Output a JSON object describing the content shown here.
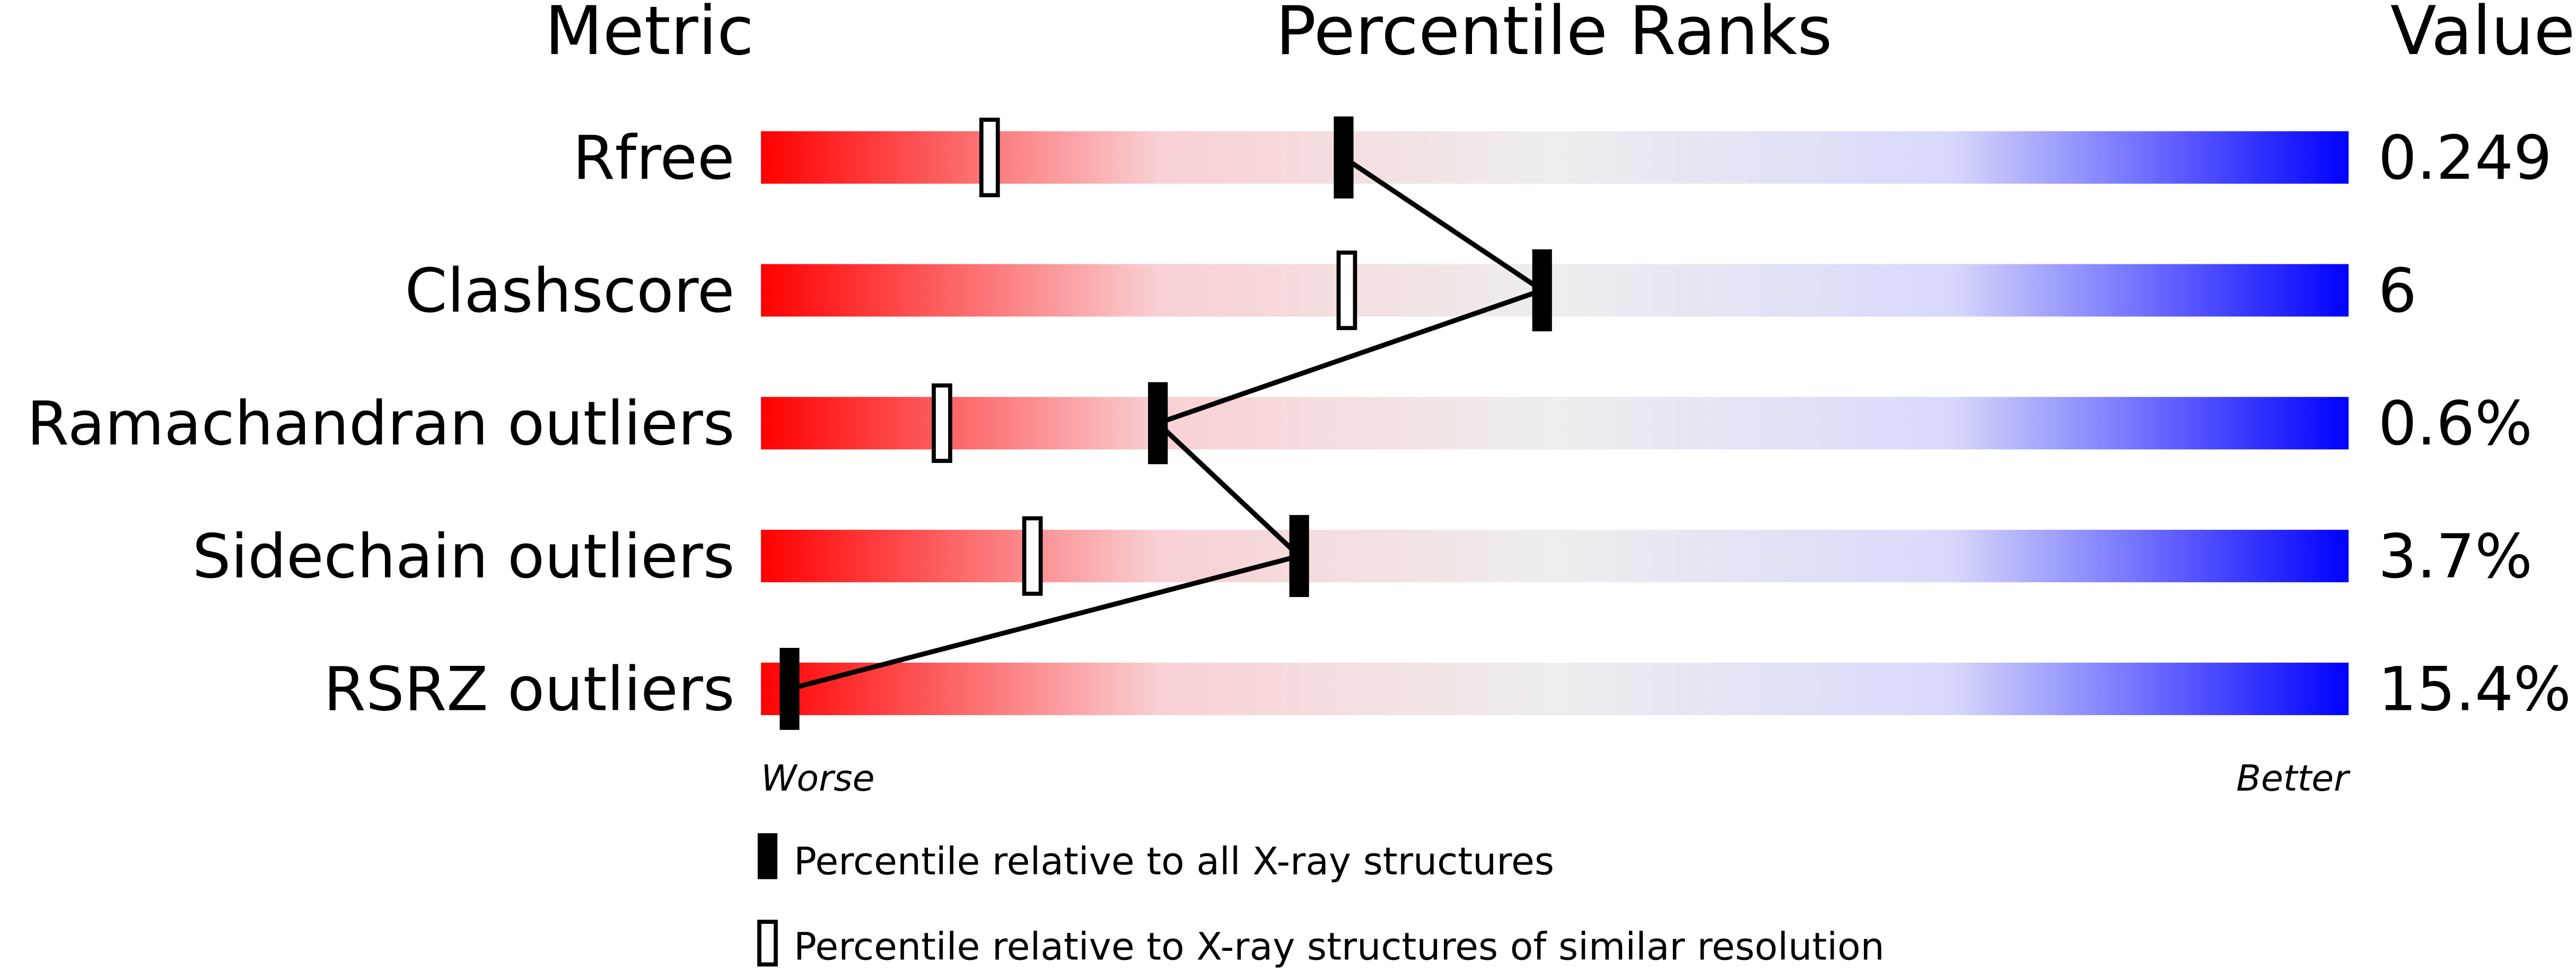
{
  "chart_data": {
    "type": "bar",
    "headers": {
      "metric": "Metric",
      "percentile": "Percentile Ranks",
      "value": "Value"
    },
    "xlim": [
      0,
      100
    ],
    "axis_labels": {
      "left": "Worse",
      "right": "Better"
    },
    "gradient_colors": [
      "#ff0000",
      "#f9d0d3",
      "#eeeeee",
      "#d8d8fc",
      "#0000ff"
    ],
    "metrics": [
      {
        "name": "Rfree",
        "value": "0.249",
        "percentile_all": 36.7,
        "percentile_similar": 14.4
      },
      {
        "name": "Clashscore",
        "value": "6",
        "percentile_all": 49.2,
        "percentile_similar": 36.9
      },
      {
        "name": "Ramachandran outliers",
        "value": "0.6%",
        "percentile_all": 25.0,
        "percentile_similar": 11.4
      },
      {
        "name": "Sidechain outliers",
        "value": "3.7%",
        "percentile_all": 33.9,
        "percentile_similar": 17.1
      },
      {
        "name": "RSRZ outliers",
        "value": "15.4%",
        "percentile_all": 1.8,
        "percentile_similar": null
      }
    ],
    "legend": [
      {
        "marker": "filled",
        "label": "Percentile relative to all X-ray structures"
      },
      {
        "marker": "open",
        "label": "Percentile relative to X-ray structures of similar resolution"
      }
    ]
  }
}
